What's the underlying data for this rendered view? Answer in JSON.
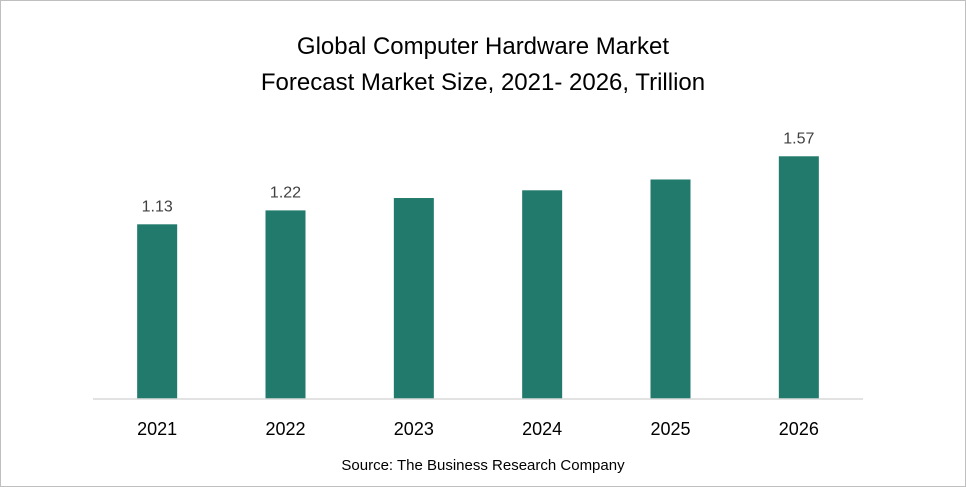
{
  "chart_data": {
    "type": "bar",
    "title": "Global Computer Hardware Market",
    "subtitle": "Forecast Market Size, 2021- 2026, Trillion",
    "categories": [
      "2021",
      "2022",
      "2023",
      "2024",
      "2025",
      "2026"
    ],
    "values": [
      1.13,
      1.22,
      1.3,
      1.35,
      1.42,
      1.57
    ],
    "data_labels": [
      "1.13",
      "1.22",
      "",
      "",
      "",
      "1.57"
    ],
    "xlabel": "",
    "ylabel": "",
    "ylim": [
      0,
      1.85
    ],
    "grid": false,
    "legend": "none",
    "bar_color": "#217A6B",
    "axis_color": "#d9d9d9",
    "source": "Source: The Business Research Company"
  }
}
